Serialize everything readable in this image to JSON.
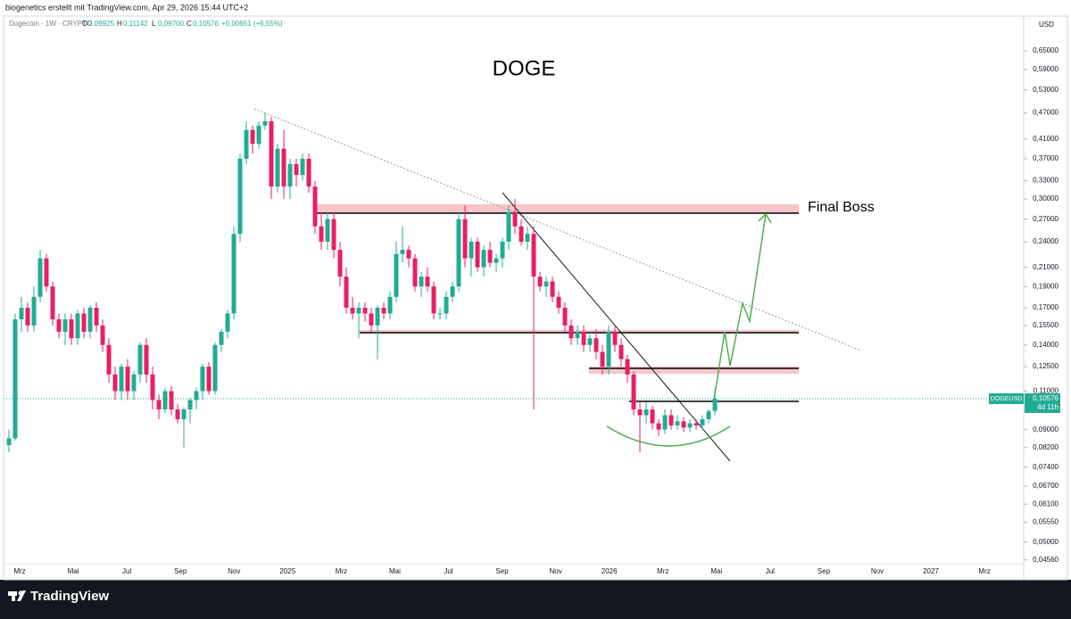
{
  "header": {
    "credit": "biogenetics erstellt mit TradingView.com, Apr 29, 2026 15:44 UTC+2",
    "symbol": "Dogecoin · 1W · CRYPTO",
    "ohlc": [
      {
        "key": "O",
        "value": "0,09925"
      },
      {
        "key": "H",
        "value": "0,11142"
      },
      {
        "key": "L",
        "value": "0,09700"
      },
      {
        "key": "C",
        "value": "0,10576"
      }
    ],
    "change": "+0,00651 (+6,55%)",
    "currency": "USD"
  },
  "chart_data": {
    "type": "candlestick",
    "title": "DOGE",
    "annotation": "Final Boss",
    "log_scale": true,
    "up_color": "#22ab94",
    "down_color": "#e91e63",
    "ylim": [
      0.0447,
      0.772
    ],
    "yticks": [
      {
        "value": 0.65,
        "label": "0,65000"
      },
      {
        "value": 0.59,
        "label": "0,59000"
      },
      {
        "value": 0.53,
        "label": "0,53000"
      },
      {
        "value": 0.47,
        "label": "0,47000"
      },
      {
        "value": 0.41,
        "label": "0,41000"
      },
      {
        "value": 0.37,
        "label": "0,37000"
      },
      {
        "value": 0.33,
        "label": "0,33000"
      },
      {
        "value": 0.3,
        "label": "0,30000"
      },
      {
        "value": 0.27,
        "label": "0,27000"
      },
      {
        "value": 0.24,
        "label": "0,24000"
      },
      {
        "value": 0.21,
        "label": "0,21000"
      },
      {
        "value": 0.19,
        "label": "0,19000"
      },
      {
        "value": 0.17,
        "label": "0,17000"
      },
      {
        "value": 0.155,
        "label": "0,15500"
      },
      {
        "value": 0.14,
        "label": "0,14000"
      },
      {
        "value": 0.125,
        "label": "0,12500"
      },
      {
        "value": 0.11,
        "label": "0,11000"
      },
      {
        "value": 0.09,
        "label": "0,09000"
      },
      {
        "value": 0.082,
        "label": "0,08200"
      },
      {
        "value": 0.074,
        "label": "0,07400"
      },
      {
        "value": 0.067,
        "label": "0,06700"
      },
      {
        "value": 0.061,
        "label": "0,06100"
      },
      {
        "value": 0.0555,
        "label": "0,05550"
      },
      {
        "value": 0.05,
        "label": "0,05000"
      },
      {
        "value": 0.0456,
        "label": "0,04560"
      }
    ],
    "x_axis_labels": [
      "Mrz",
      "Mai",
      "Jul",
      "Sep",
      "Nov",
      "2025",
      "Mrz",
      "Mai",
      "Jul",
      "Sep",
      "Nov",
      "2026",
      "Mrz",
      "Mai",
      "Jul",
      "Sep",
      "Nov",
      "2027",
      "Mrz"
    ],
    "last_price": {
      "symbol": "DOGEUSD",
      "value": 0.10576,
      "label": "0,10576",
      "countdown": "4d 11h"
    },
    "open": [
      0.083,
      0.086,
      0.16,
      0.17,
      0.155,
      0.18,
      0.22,
      0.19,
      0.16,
      0.15,
      0.16,
      0.145,
      0.165,
      0.15,
      0.17,
      0.155,
      0.14,
      0.12,
      0.11,
      0.125,
      0.11,
      0.12,
      0.14,
      0.12,
      0.105,
      0.1,
      0.11,
      0.1,
      0.095,
      0.1,
      0.105,
      0.11,
      0.125,
      0.11,
      0.14,
      0.15,
      0.165,
      0.25,
      0.37,
      0.43,
      0.4,
      0.44,
      0.45,
      0.32,
      0.39,
      0.32,
      0.36,
      0.34,
      0.37,
      0.32,
      0.26,
      0.24,
      0.27,
      0.23,
      0.2,
      0.17,
      0.165,
      0.17,
      0.165,
      0.155,
      0.17,
      0.165,
      0.18,
      0.225,
      0.23,
      0.22,
      0.19,
      0.2,
      0.19,
      0.165,
      0.165,
      0.18,
      0.19,
      0.27,
      0.22,
      0.24,
      0.21,
      0.23,
      0.215,
      0.22,
      0.24,
      0.28,
      0.26,
      0.24,
      0.25,
      0.2,
      0.19,
      0.195,
      0.18,
      0.17,
      0.155,
      0.145,
      0.15,
      0.14,
      0.145,
      0.135,
      0.125,
      0.15,
      0.14,
      0.13,
      0.12,
      0.1,
      0.097,
      0.1,
      0.093,
      0.09,
      0.097,
      0.092,
      0.094,
      0.091,
      0.093,
      0.092,
      0.095,
      0.09925
    ],
    "high": [
      0.09,
      0.165,
      0.18,
      0.175,
      0.19,
      0.23,
      0.225,
      0.195,
      0.165,
      0.165,
      0.165,
      0.168,
      0.17,
      0.172,
      0.175,
      0.16,
      0.145,
      0.125,
      0.127,
      0.13,
      0.122,
      0.142,
      0.145,
      0.125,
      0.108,
      0.112,
      0.113,
      0.103,
      0.101,
      0.106,
      0.112,
      0.127,
      0.128,
      0.142,
      0.152,
      0.168,
      0.26,
      0.38,
      0.45,
      0.44,
      0.45,
      0.47,
      0.46,
      0.4,
      0.43,
      0.37,
      0.37,
      0.38,
      0.38,
      0.33,
      0.28,
      0.28,
      0.28,
      0.24,
      0.21,
      0.18,
      0.175,
      0.175,
      0.17,
      0.172,
      0.175,
      0.185,
      0.24,
      0.26,
      0.235,
      0.225,
      0.205,
      0.21,
      0.195,
      0.17,
      0.185,
      0.195,
      0.28,
      0.29,
      0.245,
      0.245,
      0.235,
      0.24,
      0.225,
      0.245,
      0.29,
      0.3,
      0.27,
      0.26,
      0.26,
      0.205,
      0.2,
      0.2,
      0.185,
      0.175,
      0.16,
      0.155,
      0.155,
      0.148,
      0.152,
      0.14,
      0.155,
      0.155,
      0.145,
      0.133,
      0.122,
      0.104,
      0.104,
      0.102,
      0.095,
      0.1,
      0.1,
      0.097,
      0.096,
      0.095,
      0.095,
      0.097,
      0.1,
      0.11142
    ],
    "low": [
      0.08,
      0.085,
      0.15,
      0.15,
      0.15,
      0.175,
      0.185,
      0.155,
      0.145,
      0.14,
      0.14,
      0.14,
      0.145,
      0.145,
      0.15,
      0.135,
      0.115,
      0.105,
      0.105,
      0.105,
      0.105,
      0.115,
      0.115,
      0.1,
      0.095,
      0.098,
      0.097,
      0.093,
      0.082,
      0.093,
      0.1,
      0.105,
      0.108,
      0.108,
      0.135,
      0.145,
      0.16,
      0.24,
      0.36,
      0.38,
      0.39,
      0.43,
      0.3,
      0.31,
      0.3,
      0.3,
      0.32,
      0.33,
      0.31,
      0.25,
      0.23,
      0.23,
      0.22,
      0.19,
      0.165,
      0.16,
      0.145,
      0.158,
      0.15,
      0.13,
      0.16,
      0.16,
      0.175,
      0.215,
      0.21,
      0.185,
      0.18,
      0.185,
      0.16,
      0.16,
      0.16,
      0.175,
      0.185,
      0.21,
      0.2,
      0.205,
      0.2,
      0.21,
      0.205,
      0.21,
      0.23,
      0.25,
      0.235,
      0.23,
      0.1,
      0.185,
      0.18,
      0.175,
      0.165,
      0.15,
      0.14,
      0.14,
      0.135,
      0.135,
      0.13,
      0.12,
      0.12,
      0.135,
      0.125,
      0.115,
      0.097,
      0.08,
      0.093,
      0.09,
      0.087,
      0.088,
      0.09,
      0.09,
      0.089,
      0.089,
      0.09,
      0.09,
      0.093,
      0.097
    ],
    "close": [
      0.086,
      0.16,
      0.17,
      0.155,
      0.18,
      0.22,
      0.19,
      0.16,
      0.15,
      0.16,
      0.145,
      0.165,
      0.15,
      0.17,
      0.155,
      0.14,
      0.12,
      0.11,
      0.125,
      0.11,
      0.12,
      0.14,
      0.12,
      0.105,
      0.1,
      0.11,
      0.1,
      0.095,
      0.1,
      0.105,
      0.11,
      0.125,
      0.11,
      0.14,
      0.15,
      0.165,
      0.25,
      0.37,
      0.43,
      0.4,
      0.44,
      0.45,
      0.32,
      0.39,
      0.32,
      0.36,
      0.34,
      0.37,
      0.32,
      0.26,
      0.24,
      0.27,
      0.23,
      0.2,
      0.17,
      0.165,
      0.17,
      0.165,
      0.155,
      0.17,
      0.165,
      0.18,
      0.225,
      0.23,
      0.22,
      0.19,
      0.2,
      0.19,
      0.165,
      0.165,
      0.18,
      0.19,
      0.27,
      0.22,
      0.24,
      0.21,
      0.23,
      0.215,
      0.22,
      0.24,
      0.28,
      0.26,
      0.24,
      0.25,
      0.2,
      0.19,
      0.195,
      0.18,
      0.17,
      0.155,
      0.145,
      0.15,
      0.14,
      0.145,
      0.135,
      0.125,
      0.15,
      0.14,
      0.13,
      0.12,
      0.1,
      0.097,
      0.1,
      0.093,
      0.09,
      0.097,
      0.092,
      0.094,
      0.091,
      0.093,
      0.092,
      0.095,
      0.099,
      0.10576
    ]
  }
}
